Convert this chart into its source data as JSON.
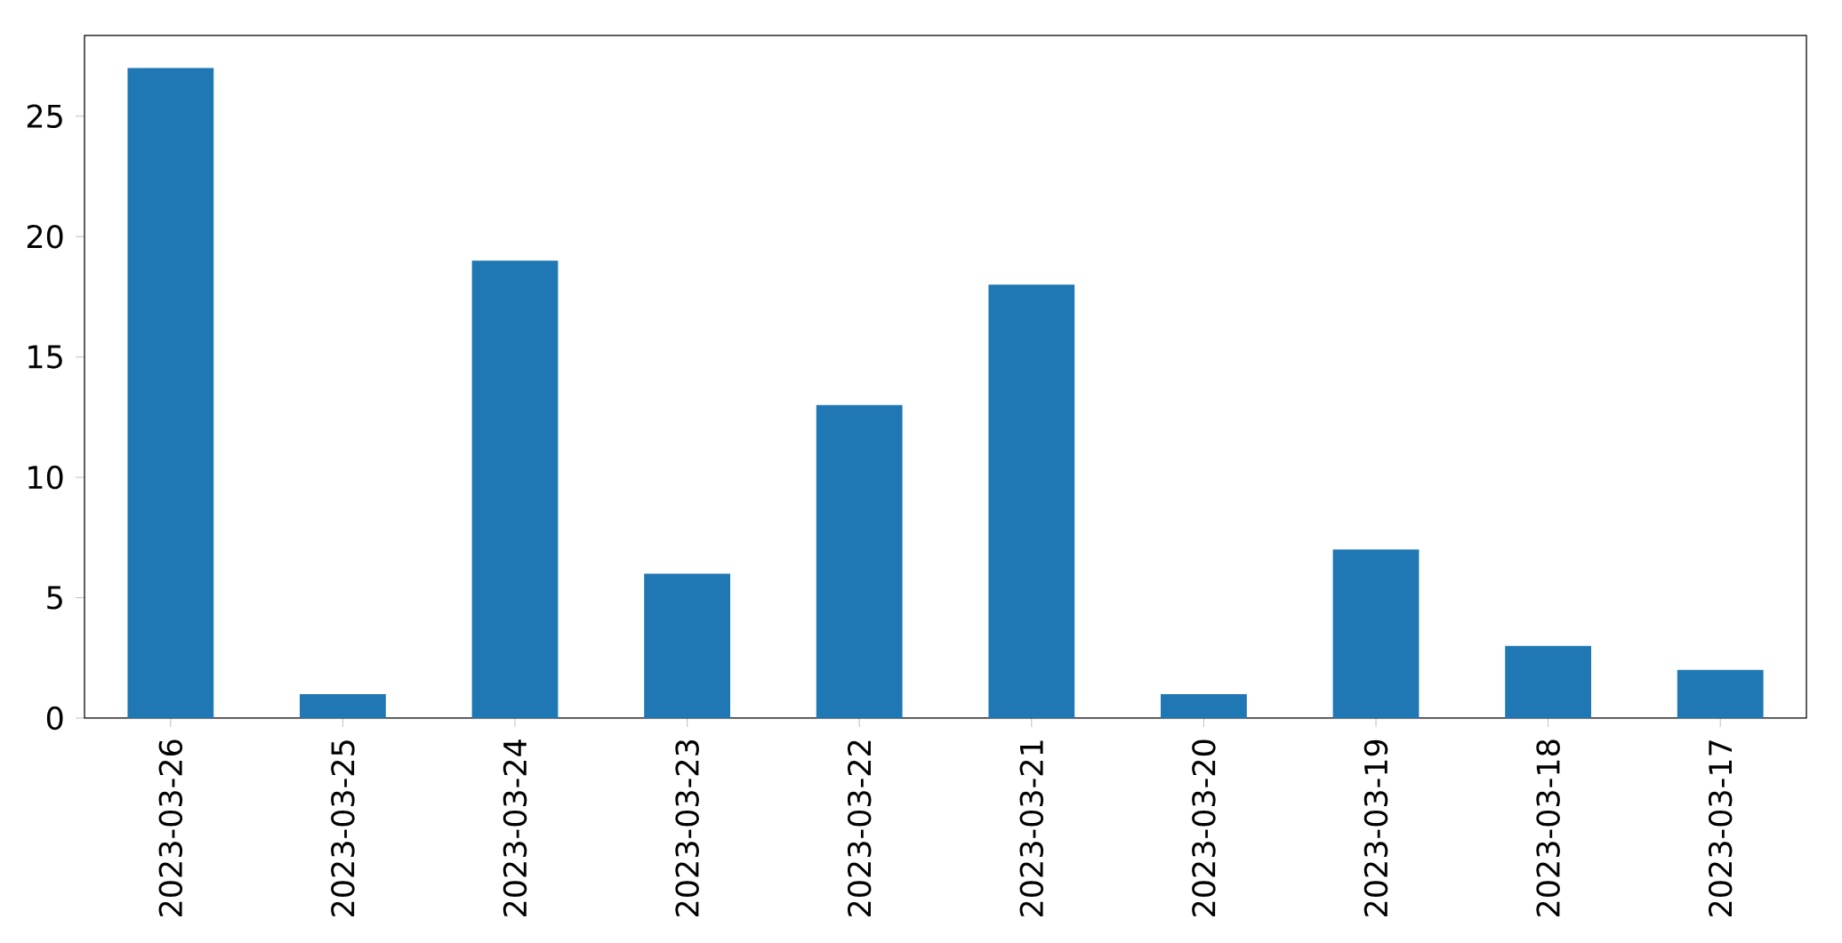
{
  "chart_data": {
    "type": "bar",
    "categories": [
      "2023-03-26",
      "2023-03-25",
      "2023-03-24",
      "2023-03-23",
      "2023-03-22",
      "2023-03-21",
      "2023-03-20",
      "2023-03-19",
      "2023-03-18",
      "2023-03-17"
    ],
    "values": [
      27,
      1,
      19,
      6,
      13,
      18,
      1,
      7,
      3,
      2
    ],
    "color": "#1f77b4",
    "ylim": [
      0,
      28.35
    ],
    "yticks": [
      0,
      5,
      10,
      15,
      20,
      25
    ],
    "grid": false
  }
}
